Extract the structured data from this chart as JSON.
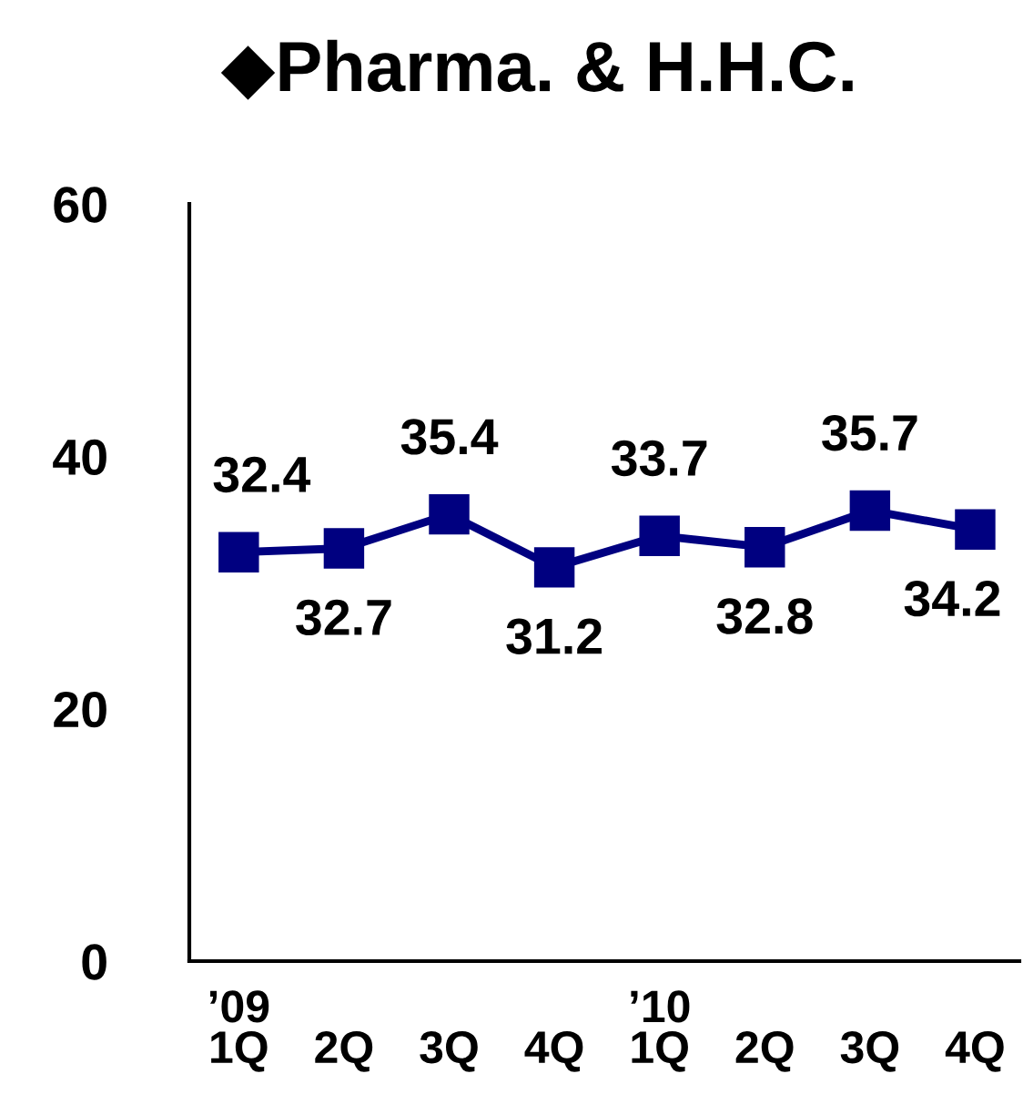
{
  "chart_data": {
    "type": "line",
    "title": "◆Pharma. & H.H.C.",
    "categories": [
      "’09\n1Q",
      "2Q",
      "3Q",
      "4Q",
      "’10\n1Q",
      "2Q",
      "3Q",
      "4Q"
    ],
    "series": [
      {
        "color": "#000080",
        "values": [
          32.4,
          32.7,
          35.4,
          31.2,
          33.7,
          32.8,
          35.7,
          34.2
        ]
      }
    ],
    "ylim": [
      0,
      60
    ],
    "yticks": [
      0,
      20,
      40,
      60
    ],
    "marker": "square",
    "line_style": "solid",
    "data_labels": true
  }
}
